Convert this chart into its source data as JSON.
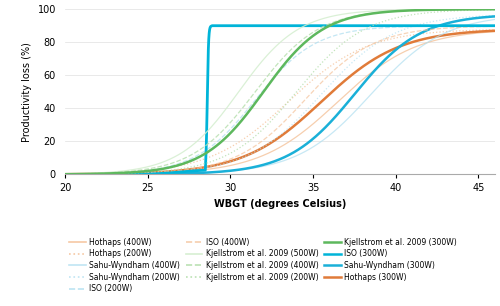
{
  "xlabel": "WBGT (degrees Celsius)",
  "ylabel": "Productivity loss (%)",
  "xlim": [
    20,
    46
  ],
  "ylim": [
    0,
    100
  ],
  "xticks": [
    20,
    25,
    30,
    35,
    40,
    45
  ],
  "yticks": [
    0,
    20,
    40,
    60,
    80,
    100
  ],
  "series": [
    {
      "name": "Hothaps (400W)",
      "color": "#f5c6a0",
      "linestyle": "solid",
      "linewidth": 0.9,
      "alpha": 0.85,
      "type": "sigmoid",
      "midpoint": 36.5,
      "steepness": 0.42,
      "max_val": 88
    },
    {
      "name": "Hothaps (200W)",
      "color": "#f5c6a0",
      "linestyle": "dotted",
      "linewidth": 0.9,
      "alpha": 0.85,
      "type": "sigmoid",
      "midpoint": 33.5,
      "steepness": 0.42,
      "max_val": 88
    },
    {
      "name": "Hothaps (300W)",
      "color": "#e07b39",
      "linestyle": "solid",
      "linewidth": 1.8,
      "alpha": 1.0,
      "type": "sigmoid",
      "midpoint": 35.5,
      "steepness": 0.42,
      "max_val": 88
    },
    {
      "name": "Sahu-Wyndham (400W)",
      "color": "#b0dff0",
      "linestyle": "solid",
      "linewidth": 0.9,
      "alpha": 0.7,
      "type": "sigmoid",
      "midpoint": 38.5,
      "steepness": 0.45,
      "max_val": 97
    },
    {
      "name": "Sahu-Wyndham (200W)",
      "color": "#b0dff0",
      "linestyle": "dotted",
      "linewidth": 0.9,
      "alpha": 0.7,
      "type": "sigmoid",
      "midpoint": 35.5,
      "steepness": 0.45,
      "max_val": 97
    },
    {
      "name": "Sahu-Wyndham (300W)",
      "color": "#1ab0d8",
      "linestyle": "solid",
      "linewidth": 1.8,
      "alpha": 1.0,
      "type": "sigmoid",
      "midpoint": 37.5,
      "steepness": 0.5,
      "max_val": 97
    },
    {
      "name": "ISO (400W)",
      "color": "#f5c6a0",
      "linestyle": "dashed",
      "linewidth": 0.9,
      "alpha": 0.75,
      "type": "sigmoid",
      "midpoint": 34.5,
      "steepness": 0.48,
      "max_val": 90
    },
    {
      "name": "ISO (200W)",
      "color": "#b0dff0",
      "linestyle": "dashed",
      "linewidth": 0.9,
      "alpha": 0.75,
      "type": "sigmoid",
      "midpoint": 31.5,
      "steepness": 0.55,
      "max_val": 90
    },
    {
      "name": "ISO (300W)",
      "color": "#00b4d8",
      "linestyle": "solid",
      "linewidth": 2.0,
      "alpha": 1.0,
      "type": "iso300",
      "x_jump": 28.5,
      "slope_start": 24.0,
      "slope_end": 28.5,
      "plateau": 90
    },
    {
      "name": "Kjellstrom et al. 2009 (500W)",
      "color": "#d4eecf",
      "linestyle": "solid",
      "linewidth": 0.9,
      "alpha": 0.85,
      "type": "sigmoid",
      "midpoint": 30.5,
      "steepness": 0.55,
      "max_val": 100
    },
    {
      "name": "Kjellstrom et al. 2009 (400W)",
      "color": "#b8e0b0",
      "linestyle": "dashed",
      "linewidth": 0.9,
      "alpha": 0.85,
      "type": "sigmoid",
      "midpoint": 31.5,
      "steepness": 0.52,
      "max_val": 100
    },
    {
      "name": "Kjellstrom et al. 2009 (200W)",
      "color": "#b8e0b0",
      "linestyle": "dotted",
      "linewidth": 0.9,
      "alpha": 0.85,
      "type": "sigmoid",
      "midpoint": 34.0,
      "steepness": 0.48,
      "max_val": 100
    },
    {
      "name": "Kjellstrom et al. 2009 (300W)",
      "color": "#5db85d",
      "linestyle": "solid",
      "linewidth": 1.8,
      "alpha": 1.0,
      "type": "sigmoid",
      "midpoint": 32.0,
      "steepness": 0.55,
      "max_val": 100
    }
  ],
  "legend_order": [
    "Hothaps (400W)",
    "Hothaps (200W)",
    "Sahu-Wyndham (400W)",
    "Sahu-Wyndham (200W)",
    "ISO (200W)",
    "ISO (400W)",
    "Kjellstrom et al. 2009 (500W)",
    "Kjellstrom et al. 2009 (400W)",
    "Kjellstrom et al. 2009 (200W)",
    "Kjellstrom et al. 2009 (300W)",
    "ISO (300W)",
    "Sahu-Wyndham (300W)",
    "Hothaps (300W)"
  ]
}
